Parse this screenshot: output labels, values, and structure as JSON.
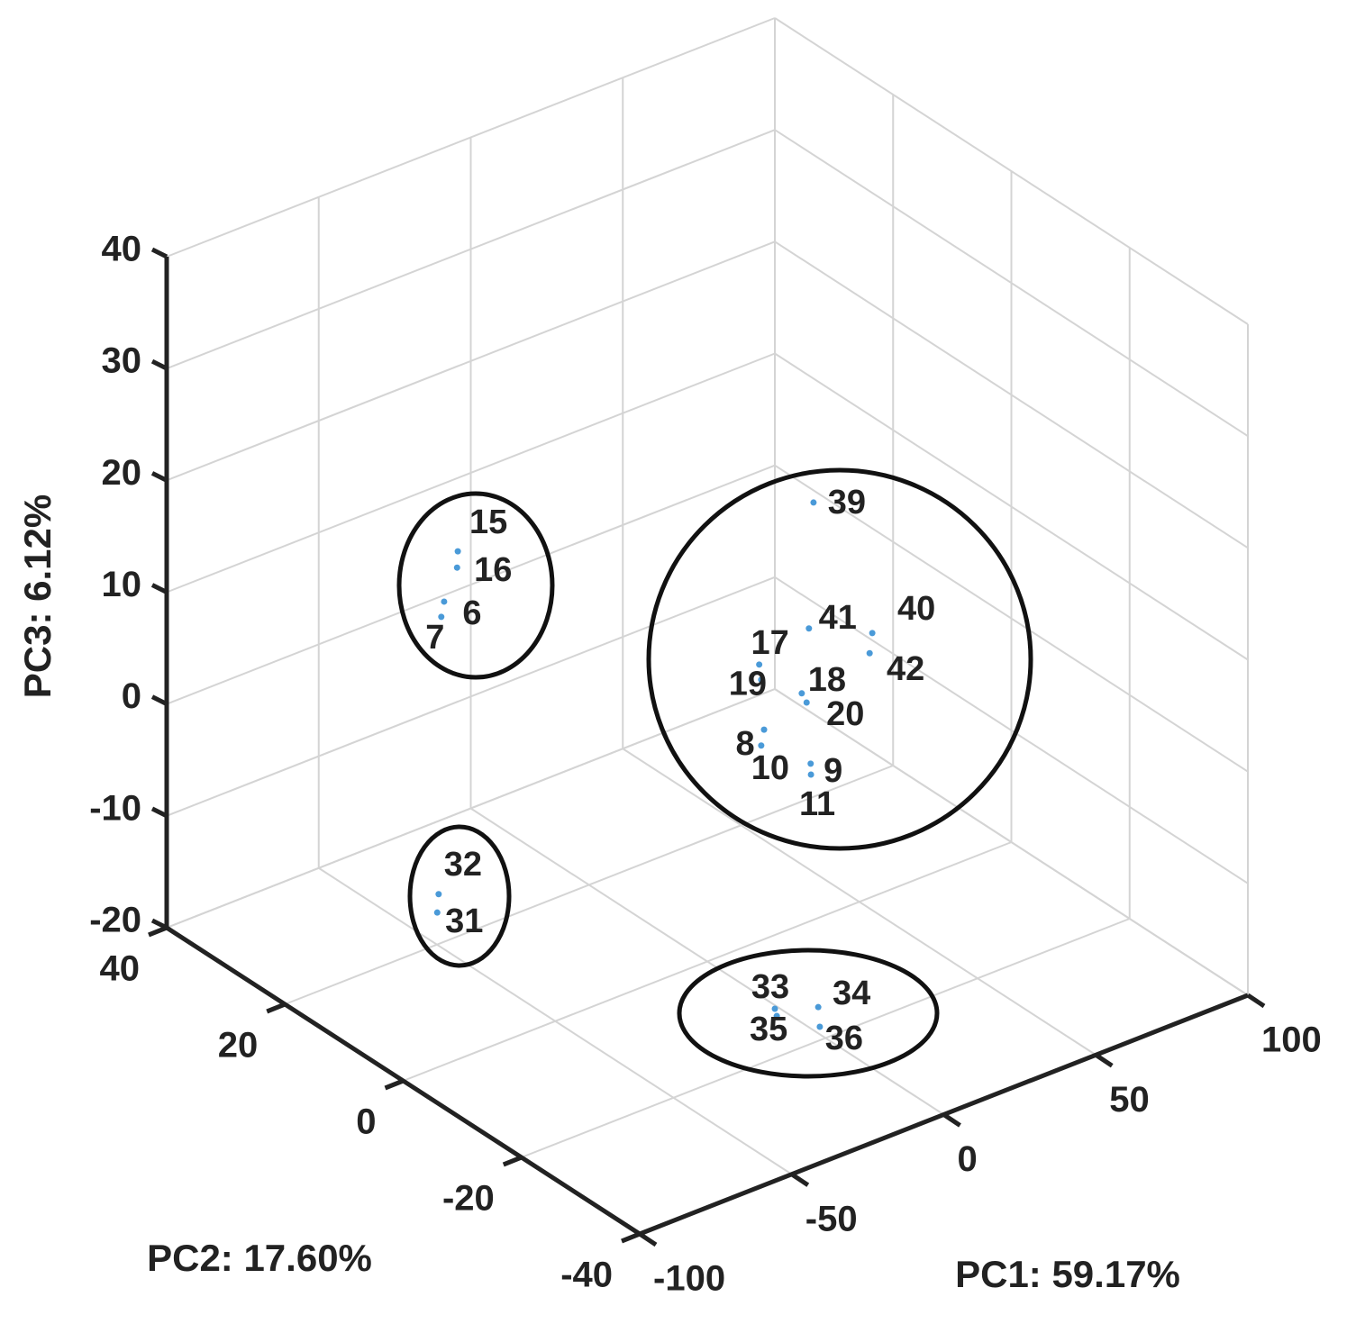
{
  "chart_data": {
    "type": "scatter3d",
    "xlabel": "PC1: 59.17%",
    "ylabel": "PC2: 17.60%",
    "zlabel": "PC3: 6.12%",
    "xlim": [
      -100,
      100
    ],
    "ylim": [
      -40,
      40
    ],
    "zlim": [
      -20,
      40
    ],
    "xticks": [
      -100,
      -50,
      0,
      50,
      100
    ],
    "yticks": [
      -40,
      -20,
      0,
      20,
      40
    ],
    "zticks": [
      -20,
      -10,
      0,
      10,
      20,
      30,
      40
    ],
    "grid": true,
    "series": [
      {
        "color": "#4a9ad8",
        "labels": [
          "15",
          "16",
          "6",
          "7",
          "32",
          "31",
          "33",
          "35",
          "34",
          "36",
          "39",
          "41",
          "40",
          "42",
          "17",
          "19",
          "18",
          "20",
          "8",
          "10",
          "9",
          "11"
        ],
        "x": [
          -20.4,
          -25.7,
          -39.1,
          -44.5,
          -51.4,
          -57.5,
          -18.8,
          -20.7,
          -9.4,
          -15.3,
          60.8,
          55.4,
          66.9,
          60.0,
          33.8,
          29.4,
          33.4,
          31.5,
          14.2,
          8.6,
          13.0,
          9.6
        ],
        "y": [
          31.7,
          29.1,
          24.4,
          22.1,
          19.0,
          16.1,
          -21.1,
          -22.4,
          -23.6,
          -26.9,
          13.3,
          11.3,
          6.5,
          3.4,
          8.6,
          6.0,
          1.2,
          -0.6,
          -2.3,
          -4.7,
          -10.8,
          -12.6
        ],
        "z": [
          8,
          8,
          8,
          8,
          -15,
          -15,
          -15,
          -15,
          -15,
          -15,
          10,
          0,
          0,
          0,
          0,
          0,
          0,
          0,
          0,
          0,
          0,
          0
        ]
      }
    ]
  }
}
